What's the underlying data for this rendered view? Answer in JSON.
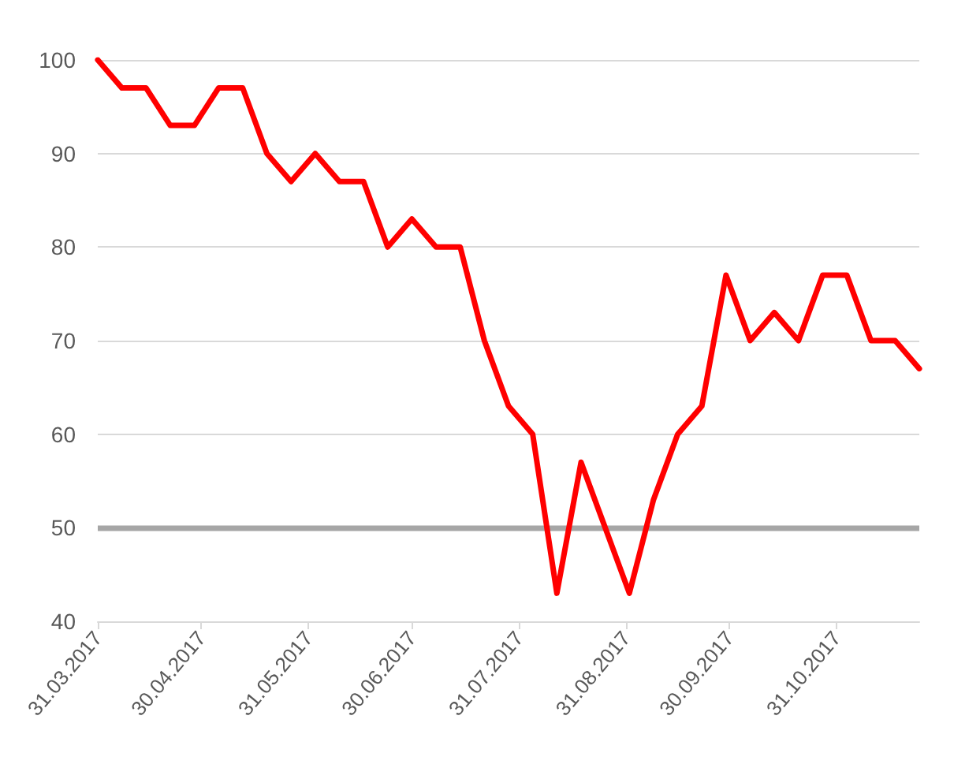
{
  "chart_data": {
    "type": "line",
    "x": [
      "2017-03-31",
      "2017-04-07",
      "2017-04-14",
      "2017-04-21",
      "2017-04-28",
      "2017-05-05",
      "2017-05-12",
      "2017-05-19",
      "2017-05-26",
      "2017-06-02",
      "2017-06-09",
      "2017-06-16",
      "2017-06-23",
      "2017-06-30",
      "2017-07-07",
      "2017-07-14",
      "2017-07-21",
      "2017-07-28",
      "2017-08-04",
      "2017-08-11",
      "2017-08-18",
      "2017-08-25",
      "2017-09-01",
      "2017-09-08",
      "2017-09-15",
      "2017-09-22",
      "2017-09-29",
      "2017-10-06",
      "2017-10-13",
      "2017-10-20",
      "2017-10-27",
      "2017-11-03",
      "2017-11-10",
      "2017-11-17",
      "2017-11-24"
    ],
    "series": [
      {
        "color": "#ff0000",
        "values": [
          100,
          97,
          97,
          93,
          93,
          97,
          97,
          90,
          87,
          90,
          87,
          87,
          80,
          83,
          80,
          80,
          70,
          63,
          60,
          43,
          57,
          50,
          43,
          53,
          60,
          63,
          77,
          70,
          73,
          70,
          77,
          77,
          70,
          70,
          67
        ]
      }
    ],
    "xlim": [
      "2017-03-31",
      "2017-11-24"
    ],
    "xticks": [
      {
        "value": "2017-03-31",
        "label": "31.03.2017"
      },
      {
        "value": "2017-04-30",
        "label": "30.04.2017"
      },
      {
        "value": "2017-05-31",
        "label": "31.05.2017"
      },
      {
        "value": "2017-06-30",
        "label": "30.06.2017"
      },
      {
        "value": "2017-07-31",
        "label": "31.07.2017"
      },
      {
        "value": "2017-08-31",
        "label": "31.08.2017"
      },
      {
        "value": "2017-09-30",
        "label": "30.09.2017"
      },
      {
        "value": "2017-10-31",
        "label": "31.10.2017"
      }
    ],
    "ylim": [
      40,
      100
    ],
    "yticks": [
      40,
      50,
      60,
      70,
      80,
      90,
      100
    ],
    "ref_lines": [
      {
        "axis": "y",
        "value": 50,
        "color": "#a6a6a6",
        "line_style": "solid"
      }
    ],
    "grid": "y",
    "marker": "none",
    "line_style": "solid"
  }
}
